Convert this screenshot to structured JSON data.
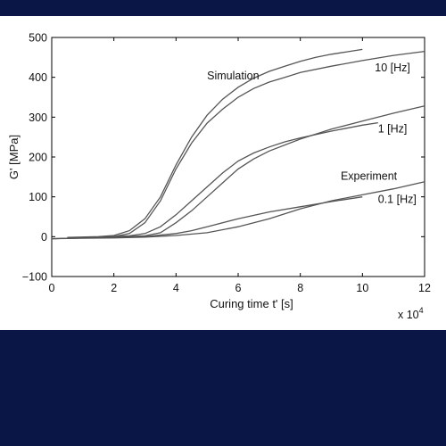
{
  "chart_data": {
    "type": "line",
    "title": "",
    "xlabel": "Curing time t' [s]",
    "ylabel": "G' [MPa]",
    "x_multiplier_base": "x 10",
    "x_multiplier_exponent": "4",
    "xlim": [
      0,
      12
    ],
    "ylim": [
      -100,
      500
    ],
    "xticks": [
      "0",
      "2",
      "4",
      "6",
      "8",
      "10",
      "12"
    ],
    "yticks": [
      "500",
      "400",
      "300",
      "200",
      "100",
      "0",
      "−100"
    ],
    "xtick_values": [
      0,
      2,
      4,
      6,
      8,
      10,
      12
    ],
    "ytick_values": [
      500,
      400,
      300,
      200,
      100,
      0,
      -100
    ],
    "grid": false,
    "line_color": "#555555",
    "annotations": [
      {
        "text": "Simulation",
        "x": 5.0,
        "y": 395
      },
      {
        "text": "10 [Hz]",
        "x": 10.4,
        "y": 415
      },
      {
        "text": "1 [Hz]",
        "x": 10.5,
        "y": 262
      },
      {
        "text": "Experiment",
        "x": 9.3,
        "y": 143
      },
      {
        "text": "0.1 [Hz]",
        "x": 10.5,
        "y": 85
      }
    ],
    "series": [
      {
        "x": [
          0.5,
          1.5,
          2.0,
          2.5,
          3.0,
          3.5,
          4.0,
          4.5,
          5.0,
          5.5,
          6.0,
          6.5,
          7.0,
          7.5,
          8.0,
          8.5,
          9.0,
          9.5,
          10.0
        ],
        "values": [
          -2,
          0,
          3,
          15,
          45,
          100,
          180,
          250,
          305,
          345,
          375,
          398,
          415,
          428,
          440,
          450,
          458,
          464,
          470
        ]
      },
      {
        "x": [
          0.0,
          1.0,
          2.0,
          2.5,
          3.0,
          3.5,
          4.0,
          4.5,
          5.0,
          5.5,
          6.0,
          6.5,
          7.0,
          7.5,
          8.0,
          9.0,
          10.0,
          11.0,
          12.0
        ],
        "values": [
          -5,
          -3,
          0,
          8,
          35,
          90,
          170,
          235,
          285,
          320,
          350,
          372,
          388,
          400,
          412,
          428,
          442,
          455,
          465
        ]
      },
      {
        "x": [
          1.0,
          2.0,
          2.5,
          3.0,
          3.5,
          4.0,
          4.5,
          5.0,
          5.5,
          6.0,
          6.5,
          7.0,
          7.5,
          8.0,
          9.0,
          10.0,
          10.5
        ],
        "values": [
          -2,
          0,
          2,
          8,
          25,
          55,
          90,
          125,
          160,
          190,
          210,
          225,
          238,
          248,
          265,
          280,
          286
        ]
      },
      {
        "x": [
          0.0,
          1.0,
          2.0,
          3.0,
          3.5,
          4.0,
          4.5,
          5.0,
          5.5,
          6.0,
          6.5,
          7.0,
          8.0,
          9.0,
          10.0,
          11.0,
          12.0
        ],
        "values": [
          -5,
          -3,
          -1,
          2,
          10,
          35,
          65,
          100,
          135,
          170,
          195,
          215,
          245,
          270,
          290,
          310,
          328
        ]
      },
      {
        "x": [
          1.0,
          2.0,
          3.0,
          4.0,
          4.5,
          5.0,
          6.0,
          7.0,
          8.0,
          9.0,
          10.0
        ],
        "values": [
          -3,
          -2,
          0,
          8,
          15,
          25,
          45,
          62,
          75,
          88,
          100
        ]
      },
      {
        "x": [
          0.0,
          1.0,
          2.0,
          3.0,
          4.0,
          5.0,
          6.0,
          7.0,
          8.0,
          9.0,
          10.0,
          11.0,
          12.0
        ],
        "values": [
          -5,
          -4,
          -3,
          -1,
          3,
          10,
          25,
          45,
          70,
          90,
          105,
          120,
          138
        ]
      }
    ]
  }
}
